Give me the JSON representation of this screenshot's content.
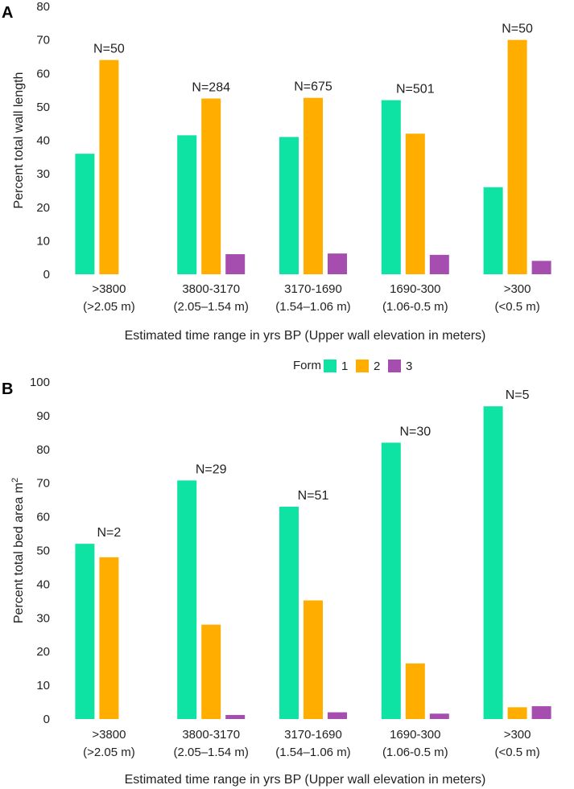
{
  "legend": {
    "title": "Form",
    "entries": [
      "1",
      "2",
      "3"
    ]
  },
  "colors": {
    "form1": "#0fe3a3",
    "form2": "#ffae00",
    "form3": "#a64db0"
  },
  "chart_data": [
    {
      "panel": "A",
      "type": "bar",
      "ylabel": "Percent total wall length",
      "ylabel_superscript": "",
      "xlabel": "Estimated time range in yrs BP (Upper wall elevation in meters)",
      "ylim": [
        0,
        80
      ],
      "ticks": [
        0,
        10,
        20,
        30,
        40,
        50,
        60,
        70,
        80
      ],
      "categories": [
        {
          "line1": ">3800",
          "line2": "(>2.05 m)",
          "n": "N=50"
        },
        {
          "line1": "3800-3170",
          "line2": "(2.05–1.54 m)",
          "n": "N=284"
        },
        {
          "line1": "3170-1690",
          "line2": "(1.54–1.06 m)",
          "n": "N=675"
        },
        {
          "line1": "1690-300",
          "line2": "(1.06-0.5 m)",
          "n": "N=501"
        },
        {
          "line1": ">300",
          "line2": "(<0.5 m)",
          "n": "N=50"
        }
      ],
      "series": [
        {
          "name": "1",
          "values": [
            36,
            41.5,
            41,
            52,
            26
          ]
        },
        {
          "name": "2",
          "values": [
            64,
            52.5,
            52.7,
            42,
            70
          ]
        },
        {
          "name": "3",
          "values": [
            0,
            6,
            6.2,
            5.8,
            4
          ]
        }
      ]
    },
    {
      "panel": "B",
      "type": "bar",
      "ylabel": "Percent total bed area m",
      "ylabel_superscript": "2",
      "xlabel": "Estimated time range in yrs BP (Upper wall elevation in meters)",
      "ylim": [
        0,
        100
      ],
      "ticks": [
        0,
        10,
        20,
        30,
        40,
        50,
        60,
        70,
        80,
        90,
        100
      ],
      "categories": [
        {
          "line1": ">3800",
          "line2": "(>2.05 m)",
          "n": "N=2"
        },
        {
          "line1": "3800-3170",
          "line2": "(2.05–1.54 m)",
          "n": "N=29"
        },
        {
          "line1": "3170-1690",
          "line2": "(1.54–1.06 m)",
          "n": "N=51"
        },
        {
          "line1": "1690-300",
          "line2": "(1.06-0.5 m)",
          "n": "N=30"
        },
        {
          "line1": ">300",
          "line2": "(<0.5 m)",
          "n": "N=5"
        }
      ],
      "series": [
        {
          "name": "1",
          "values": [
            52,
            70.8,
            63,
            82,
            92.8
          ]
        },
        {
          "name": "2",
          "values": [
            48,
            28,
            35.2,
            16.5,
            3.5
          ]
        },
        {
          "name": "3",
          "values": [
            0,
            1.2,
            2,
            1.6,
            3.8
          ]
        }
      ]
    }
  ]
}
